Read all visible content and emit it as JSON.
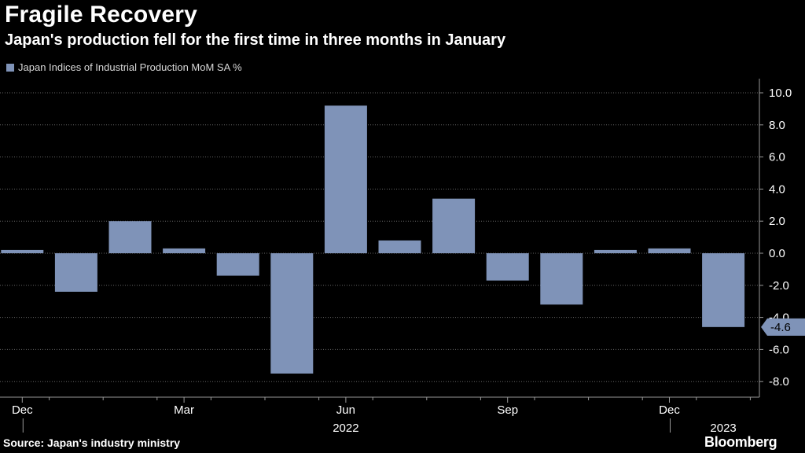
{
  "title": "Fragile Recovery",
  "subtitle": "Japan's production fell for the first time in three months in January",
  "source": "Source: Japan's industry ministry",
  "brand": "Bloomberg",
  "colors": {
    "bar": "#7f93b8",
    "grid": "#666666",
    "axis": "#999999",
    "callout": "#7f93b8"
  },
  "chart_data": {
    "type": "bar",
    "title": "Fragile Recovery",
    "legend": "Japan Indices of Industrial Production MoM SA %",
    "categories": [
      "Dec 2021",
      "Jan 2022",
      "Feb 2022",
      "Mar 2022",
      "Apr 2022",
      "May 2022",
      "Jun 2022",
      "Jul 2022",
      "Aug 2022",
      "Sep 2022",
      "Oct 2022",
      "Nov 2022",
      "Dec 2022",
      "Jan 2023"
    ],
    "values": [
      0.2,
      -2.4,
      2.0,
      0.3,
      -1.4,
      -7.5,
      9.2,
      0.8,
      3.4,
      -1.7,
      -3.2,
      0.2,
      0.3,
      -4.6
    ],
    "ylim": [
      -9,
      11
    ],
    "yticks": [
      10.0,
      8.0,
      6.0,
      4.0,
      2.0,
      0.0,
      -2.0,
      -4.0,
      -6.0,
      -8.0
    ],
    "ytick_labels": [
      "10.0",
      "8.0",
      "6.0",
      "4.0",
      "2.0",
      "0.0",
      "-2.0",
      "-4.0",
      "-6.0",
      "-8.0"
    ],
    "xtick_labels": [
      {
        "index": 0,
        "label": "Dec"
      },
      {
        "index": 3,
        "label": "Mar"
      },
      {
        "index": 6,
        "label": "Jun"
      },
      {
        "index": 9,
        "label": "Sep"
      },
      {
        "index": 12,
        "label": "Dec"
      }
    ],
    "year_labels": [
      {
        "index": 6,
        "label": "2022"
      },
      {
        "index": 13,
        "label": "2023"
      }
    ],
    "last_value_callout": "-4.6",
    "xlabel": "",
    "ylabel": ""
  }
}
